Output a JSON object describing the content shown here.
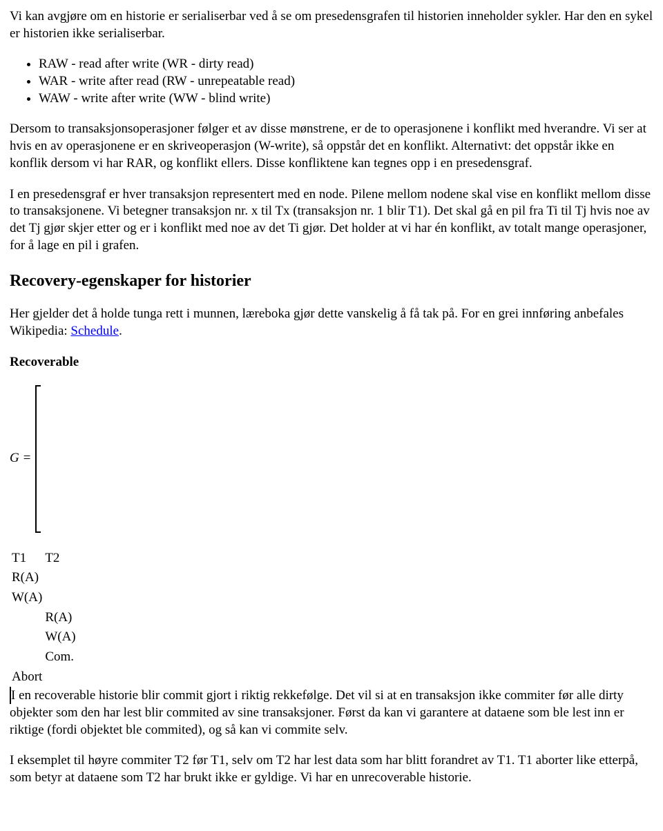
{
  "para1": "Vi kan avgjøre om en historie er serialiserbar ved å se om presedensgrafen til historien inneholder sykler. Har den en sykel er historien ikke serialiserbar.",
  "bullets": {
    "b1": "RAW - read after write (WR - dirty read)",
    "b2": "WAR - write after read (RW - unrepeatable read)",
    "b3": "WAW - write after write (WW - blind write)"
  },
  "para2": "Dersom to transaksjonsoperasjoner følger et av disse mønstrene, er de to operasjonene i konflikt med hverandre. Vi ser at hvis en av operasjonene er en skriveoperasjon (W-write), så oppstår det en konflikt. Alternativt: det oppstår ikke en konflik dersom vi har RAR, og konflikt ellers. Disse konfliktene kan tegnes opp i en presedensgraf.",
  "para3": "I en presedensgraf er hver transaksjon representert med en node. Pilene mellom nodene skal vise en konflikt mellom disse to transaksjonene. Vi betegner transaksjon nr. x til Tx (transaksjon nr. 1 blir T1). Det skal gå en pil fra Ti til Tj hvis noe av det Tj gjør skjer etter og er i konflikt med noe av det Ti gjør. Det holder at vi har én konflikt, av totalt mange operasjoner, for å lage en pil i grafen.",
  "heading2": "Recovery-egenskaper for historier",
  "para4_pre": "Her gjelder det å holde tunga rett i munnen, læreboka gjør dette vanskelig å få tak på. For en grei innføring anbefales Wikipedia: ",
  "para4_link": "Schedule",
  "para4_post": ".",
  "subhead": "Recoverable",
  "matrix": {
    "lhs": "G =",
    "headers": [
      "T1",
      "T2"
    ],
    "rows": [
      [
        "R(A)",
        ""
      ],
      [
        "W(A)",
        ""
      ],
      [
        "",
        "R(A)"
      ],
      [
        "",
        "W(A)"
      ],
      [
        "",
        "Com."
      ],
      [
        "Abort",
        ""
      ]
    ]
  },
  "para5a": " I en recoverable historie blir commit gjort i riktig rekkefølge. Det vil si at en transaksjon ikke commiter før alle dirty objekter som den har lest blir commited av sine transaksjoner. Først da kan vi garantere at dataene som ble lest inn er riktige (fordi objektet ble commited), og så kan vi commite selv.",
  "para6": "I eksemplet til høyre commiter T2 før T1, selv om T2 har lest data som har blitt forandret av T1. T1 aborter like etterpå, som betyr at dataene som T2 har brukt ikke er gyldige. Vi har en unrecoverable historie.",
  "link_color": "#0000ee"
}
